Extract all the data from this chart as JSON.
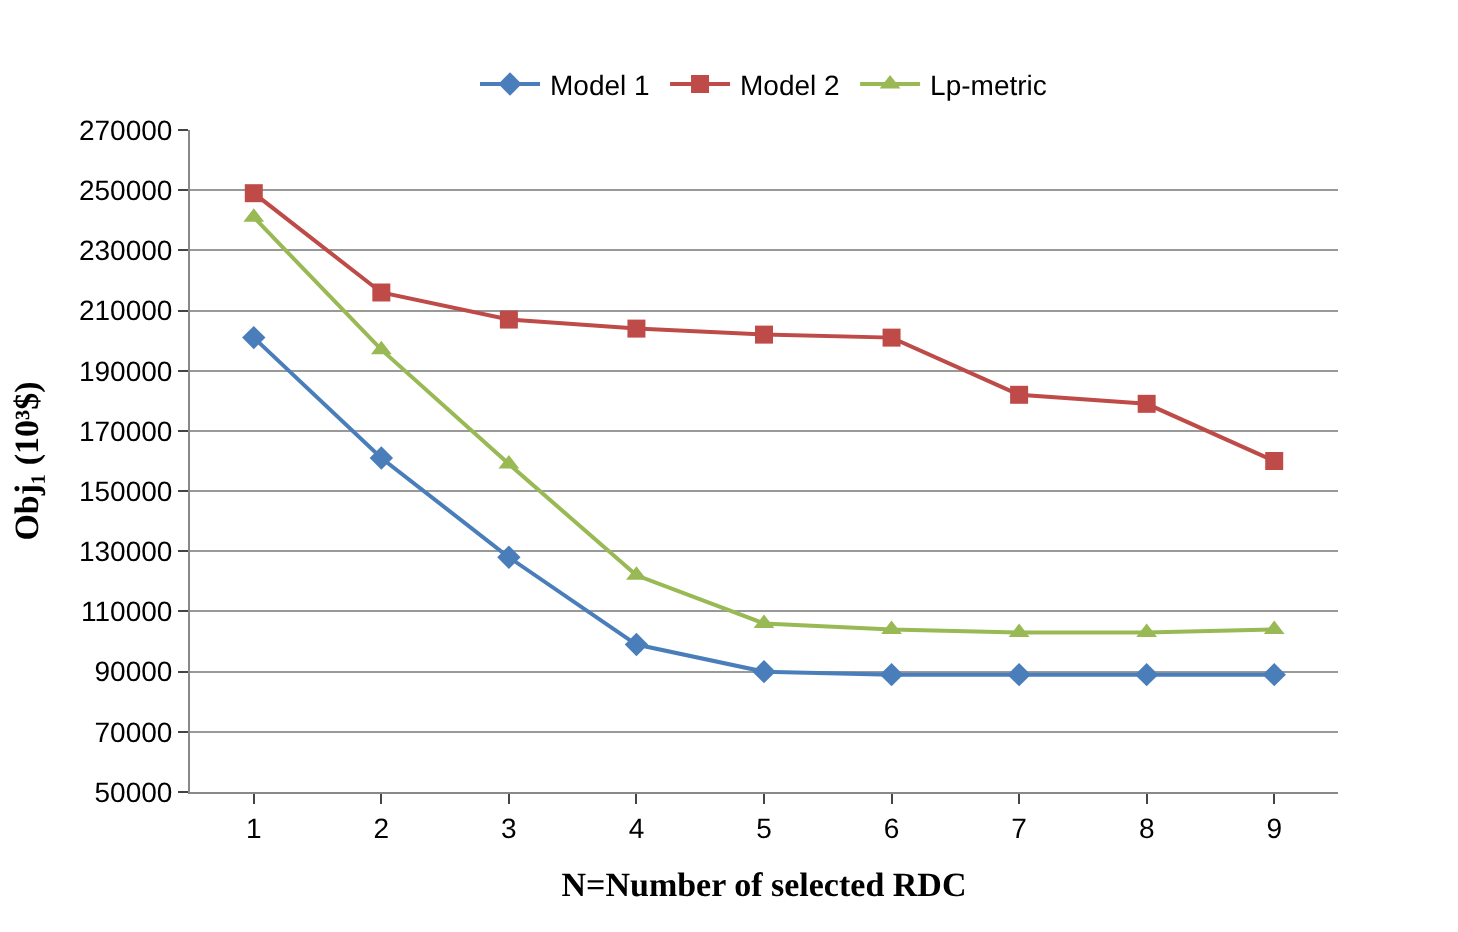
{
  "chart_data": {
    "type": "line",
    "xlabel": "N=Number of selected RDC",
    "ylabel": "Obj₁ (10³$)",
    "categories": [
      "1",
      "2",
      "3",
      "4",
      "5",
      "6",
      "7",
      "8",
      "9"
    ],
    "series": [
      {
        "name": "Model 1",
        "color": "#4a7ebb",
        "marker": "diamond",
        "values": [
          201000,
          161000,
          128000,
          99000,
          90000,
          89000,
          89000,
          89000,
          89000
        ]
      },
      {
        "name": "Model 2",
        "color": "#be4b48",
        "marker": "square",
        "values": [
          249000,
          216000,
          207000,
          204000,
          202000,
          201000,
          182000,
          179000,
          160000
        ]
      },
      {
        "name": "Lp-metric",
        "color": "#98b954",
        "marker": "triangle",
        "values": [
          241000,
          197000,
          159000,
          122000,
          106000,
          104000,
          103000,
          103000,
          104000
        ]
      }
    ],
    "ylim": [
      50000,
      270000
    ],
    "yticks": [
      50000,
      70000,
      90000,
      110000,
      130000,
      150000,
      170000,
      190000,
      210000,
      230000,
      250000,
      270000
    ],
    "grid": "y",
    "legend": "top",
    "line_style": "solid"
  }
}
